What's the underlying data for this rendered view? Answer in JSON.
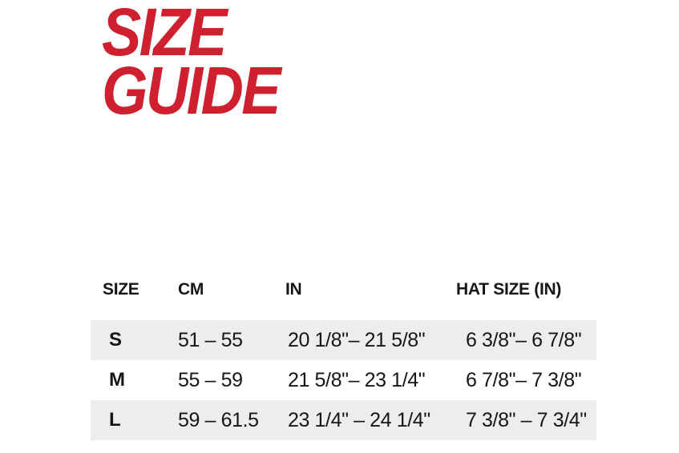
{
  "colors": {
    "accent_red": "#CF2030",
    "stripe_gray": "#EDEDED",
    "page_background": "#ffffff",
    "text": "#161616"
  },
  "title": {
    "line1": "SIZE",
    "line2": "GUIDE"
  },
  "table": {
    "headers": [
      "SIZE",
      "CM",
      "IN",
      "HAT SIZE (IN)"
    ],
    "rows": [
      {
        "size": "S",
        "cm": "51 – 55",
        "in": "20 1/8\"– 21 5/8\"",
        "hat": "6 3/8\"– 6 7/8\""
      },
      {
        "size": "M",
        "cm": "55 – 59",
        "in": "21 5/8\"– 23 1/4\"",
        "hat": "6 7/8\"– 7 3/8\""
      },
      {
        "size": "L",
        "cm": "59 – 61.5",
        "in": "23 1/4\" – 24 1/4\"",
        "hat": "7 3/8\" – 7 3/4\""
      }
    ]
  },
  "chart_data": {
    "type": "table",
    "title": "SIZE GUIDE",
    "columns": [
      "SIZE",
      "CM",
      "IN",
      "HAT SIZE (IN)"
    ],
    "rows": [
      [
        "S",
        "51 – 55",
        "20 1/8\"– 21 5/8\"",
        "6 3/8\"– 6 7/8\""
      ],
      [
        "M",
        "55 – 59",
        "21 5/8\"– 23 1/4\"",
        "6 7/8\"– 7 3/8\""
      ],
      [
        "L",
        "59 – 61.5",
        "23 1/4\" – 24 1/4\"",
        "7 3/8\" – 7 3/4\""
      ]
    ],
    "layout_hints": {
      "striped_rows": [
        "S",
        "L"
      ],
      "stripe_color": "#EDEDED",
      "title_color": "#CF2030"
    }
  }
}
